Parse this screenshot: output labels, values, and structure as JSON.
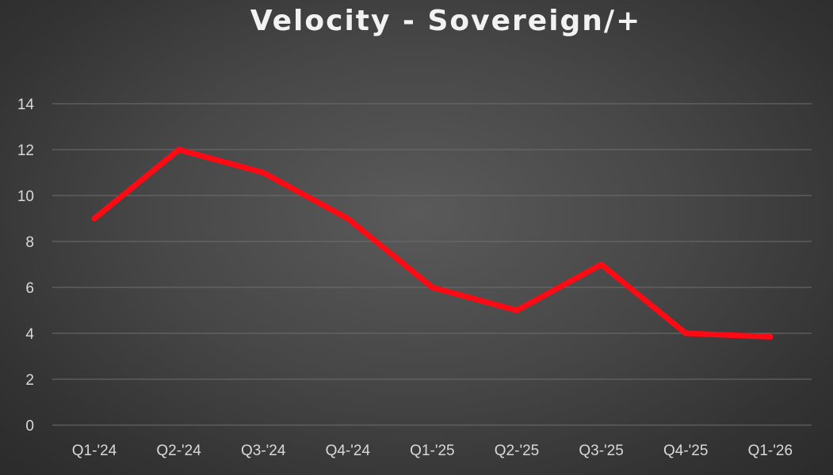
{
  "chart_data": {
    "type": "line",
    "title": "Velocity - Sovereign/+",
    "xlabel": "",
    "ylabel": "",
    "categories": [
      "Q1-'24",
      "Q2-'24",
      "Q3-'24",
      "Q4-'24",
      "Q1-'25",
      "Q2-'25",
      "Q3-'25",
      "Q4-'25",
      "Q1-'26"
    ],
    "series": [
      {
        "values": [
          9,
          12,
          11,
          9,
          6,
          5,
          7,
          4,
          3.85
        ],
        "color": "#ff0a14"
      }
    ],
    "ylim": [
      0,
      14
    ],
    "yticks": [
      "0",
      "2",
      "4",
      "6",
      "8",
      "10",
      "12",
      "14"
    ],
    "grid": true,
    "legend": "none"
  }
}
